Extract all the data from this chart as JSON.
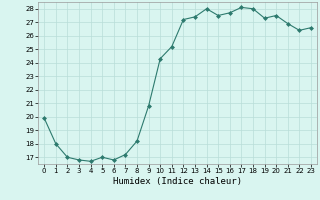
{
  "x": [
    0,
    1,
    2,
    3,
    4,
    5,
    6,
    7,
    8,
    9,
    10,
    11,
    12,
    13,
    14,
    15,
    16,
    17,
    18,
    19,
    20,
    21,
    22,
    23
  ],
  "y": [
    19.9,
    18.0,
    17.0,
    16.8,
    16.7,
    17.0,
    16.8,
    17.2,
    18.2,
    20.8,
    24.3,
    25.2,
    27.2,
    27.4,
    28.0,
    27.5,
    27.7,
    28.1,
    28.0,
    27.3,
    27.5,
    26.9,
    26.4,
    26.6
  ],
  "line_color": "#2d7a6e",
  "marker": "D",
  "marker_size": 2,
  "bg_color": "#d9f5f0",
  "grid_color": "#b8ddd8",
  "xlabel": "Humidex (Indice chaleur)",
  "xlim": [
    -0.5,
    23.5
  ],
  "ylim": [
    16.5,
    28.5
  ],
  "yticks": [
    17,
    18,
    19,
    20,
    21,
    22,
    23,
    24,
    25,
    26,
    27,
    28
  ],
  "xticks": [
    0,
    1,
    2,
    3,
    4,
    5,
    6,
    7,
    8,
    9,
    10,
    11,
    12,
    13,
    14,
    15,
    16,
    17,
    18,
    19,
    20,
    21,
    22,
    23
  ],
  "tick_fontsize": 5,
  "label_fontsize": 6.5
}
